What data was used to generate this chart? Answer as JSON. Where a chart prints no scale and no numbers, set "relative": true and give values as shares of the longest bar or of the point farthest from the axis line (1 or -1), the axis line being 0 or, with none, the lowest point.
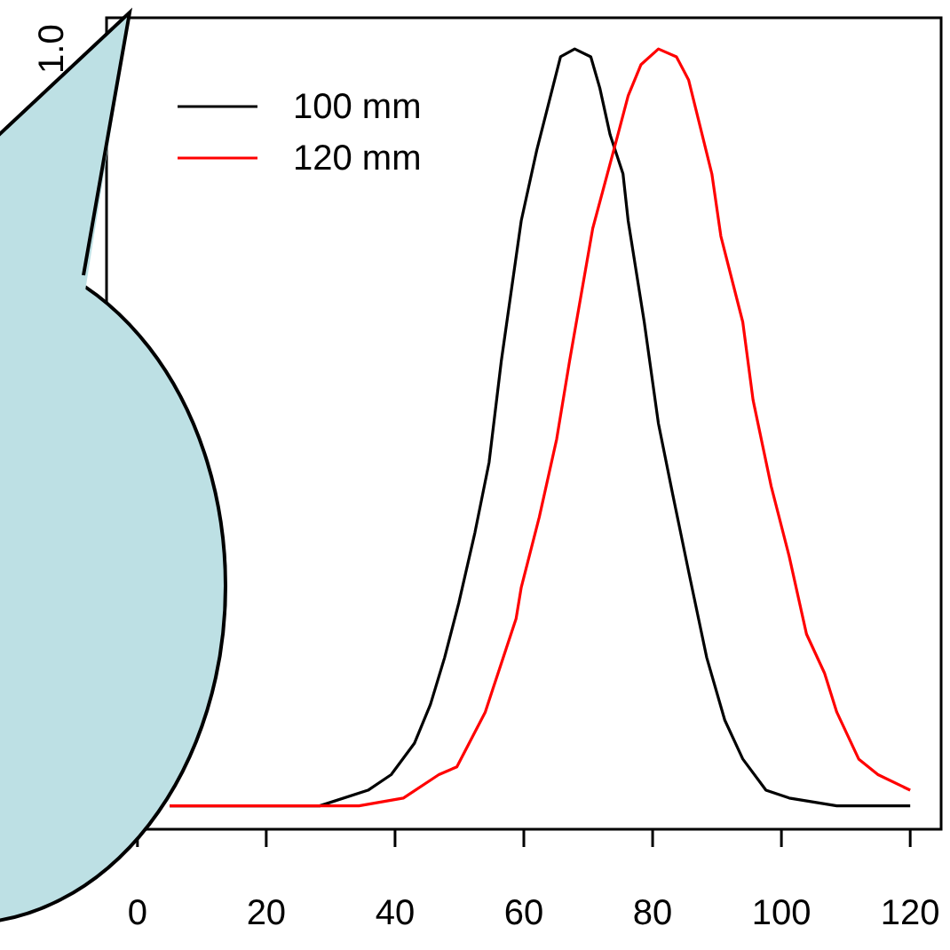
{
  "chart_data": {
    "type": "line",
    "relative": true,
    "annotations": [
      "1.0"
    ],
    "xlim": [
      -4.8,
      124.8
    ],
    "xticks": [
      0,
      20,
      40,
      60,
      80,
      100,
      120
    ],
    "legend": "top left",
    "grid": false,
    "marker": "none",
    "line_style": "solid",
    "series": [
      {
        "name": "100 mm",
        "color": "#000000",
        "x": [
          5,
          28.3,
          35.8,
          39.4,
          43,
          45.5,
          47.7,
          49.9,
          52.4,
          54.6,
          56.5,
          59.6,
          62,
          65.7,
          67.9,
          70.4,
          71.8,
          73.4,
          75.4,
          76.2,
          78.7,
          80.9,
          83.1,
          85.6,
          88.4,
          91.2,
          94,
          97.6,
          101.2,
          108.6,
          120
        ],
        "values": [
          0.03,
          0.03,
          0.05,
          0.07,
          0.11,
          0.16,
          0.22,
          0.29,
          0.38,
          0.47,
          0.6,
          0.78,
          0.87,
          0.99,
          1,
          0.99,
          0.95,
          0.89,
          0.84,
          0.78,
          0.65,
          0.52,
          0.43,
          0.33,
          0.22,
          0.14,
          0.09,
          0.05,
          0.04,
          0.03,
          0.03
        ]
      },
      {
        "name": "120 mm",
        "color": "#ff0000",
        "x": [
          5,
          34.4,
          41.3,
          46.8,
          49.6,
          54,
          55.2,
          58.8,
          59.6,
          62.4,
          65.1,
          67.1,
          70.7,
          74.6,
          76.2,
          78.2,
          80.9,
          83.7,
          85.6,
          89.2,
          90.6,
          94,
          95.6,
          98.4,
          101.2,
          103.9,
          106.7,
          108.6,
          112,
          115,
          120
        ],
        "values": [
          0.03,
          0.03,
          0.04,
          0.07,
          0.08,
          0.15,
          0.18,
          0.27,
          0.31,
          0.4,
          0.5,
          0.6,
          0.77,
          0.89,
          0.94,
          0.98,
          1,
          0.99,
          0.96,
          0.84,
          0.76,
          0.65,
          0.55,
          0.44,
          0.35,
          0.25,
          0.2,
          0.15,
          0.09,
          0.07,
          0.05
        ]
      }
    ]
  }
}
